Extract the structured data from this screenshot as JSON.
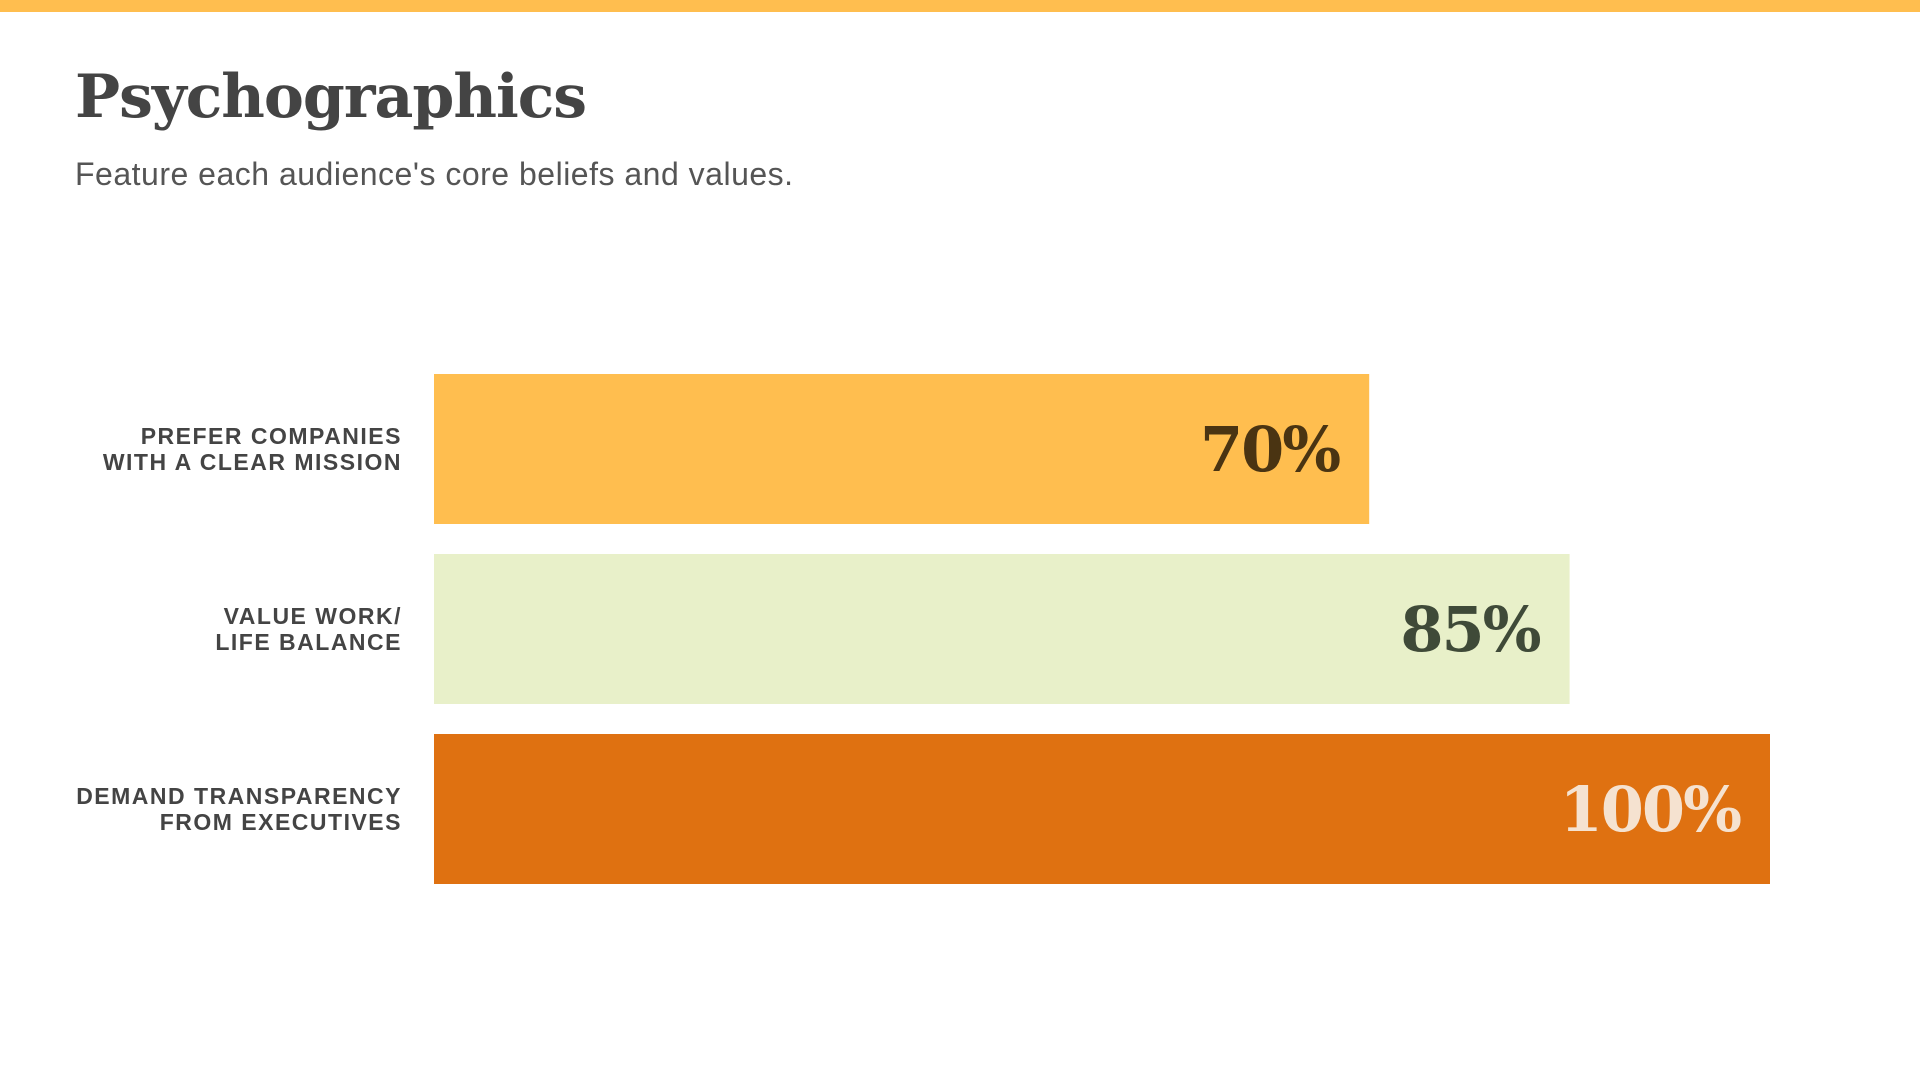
{
  "colors": {
    "top_stripe": "#FFBE4F",
    "title_text": "#444444",
    "subtitle_text": "#555555"
  },
  "slide": {
    "title": "Psychographics",
    "subtitle": "Feature each audience's core beliefs and values."
  },
  "chart_data": {
    "type": "bar",
    "orientation": "horizontal",
    "title": "",
    "xlabel": "",
    "ylabel": "",
    "xlim": [
      0,
      100
    ],
    "grid": false,
    "categories": [
      [
        "PREFER COMPANIES",
        "WITH A CLEAR MISSION"
      ],
      [
        "VALUE WORK/",
        "LIFE BALANCE"
      ],
      [
        "DEMAND TRANSPARENCY",
        "FROM EXECUTIVES"
      ]
    ],
    "values": [
      70,
      85,
      100
    ],
    "value_labels": [
      "70%",
      "85%",
      "100%"
    ],
    "bar_colors": [
      "#FFBE4F",
      "#E8F0C9",
      "#DF7111"
    ],
    "value_label_colors": [
      "#4A3412",
      "#3F4A38",
      "#F5E2D0"
    ]
  }
}
